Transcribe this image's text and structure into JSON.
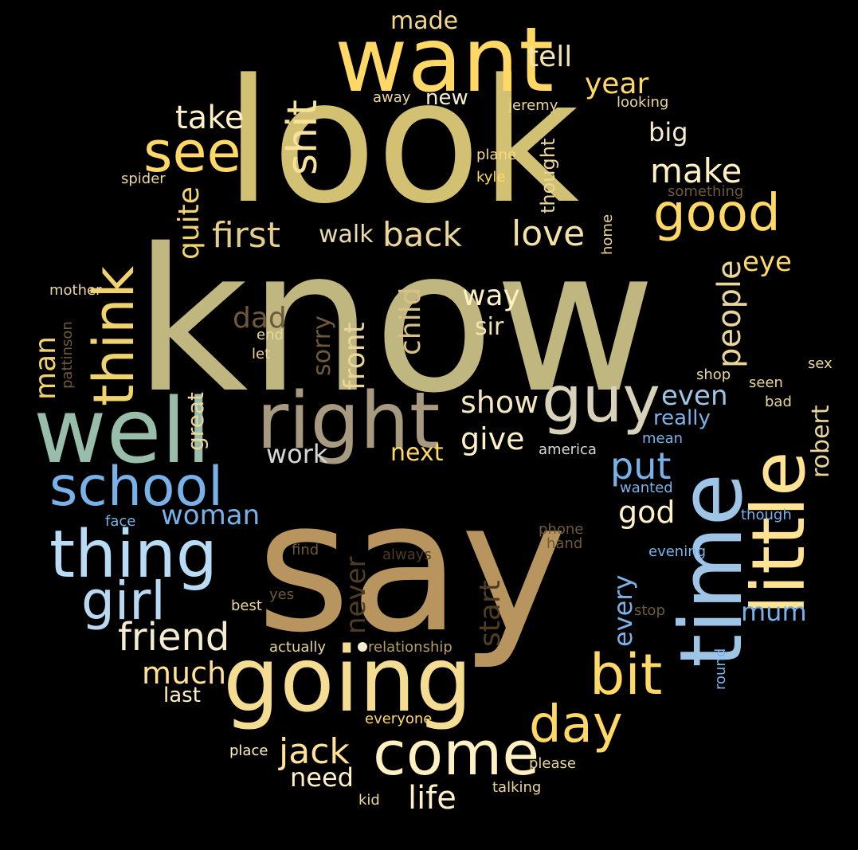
{
  "words": {
    "know": "know",
    "say": "say",
    "look": "look",
    "want": "want",
    "time": "time",
    "little": "little",
    "well": "well",
    "going": "going",
    "right": "right",
    "guy": "guy",
    "think": "think",
    "thing": "thing",
    "school": "school",
    "see": "see",
    "come": "come",
    "girl": "girl",
    "bit": "bit",
    "day": "day",
    "good": "good",
    "shit": "shit",
    "friend": "friend",
    "first": "first",
    "back": "back",
    "love": "love",
    "make": "make",
    "take": "take",
    "tell": "tell",
    "year": "year",
    "made": "made",
    "new": "new",
    "big": "big",
    "quite": "quite",
    "walk": "walk",
    "people": "people",
    "eye": "eye",
    "child": "child",
    "way": "way",
    "sir": "sir",
    "dad": "dad",
    "sorry": "sorry",
    "front": "front",
    "man": "man",
    "great": "great",
    "show": "show",
    "give": "give",
    "even": "even",
    "work": "work",
    "next": "next",
    "put": "put",
    "really": "really",
    "robert": "robert",
    "woman": "woman",
    "god": "god",
    "never": "never",
    "start": "start",
    "every": "every",
    "mum": "mum",
    "much": "much",
    "last": "last",
    "jack": "jack",
    "need": "need",
    "life": "life",
    "thought": "thought",
    "home": "home",
    "something": "something",
    "looking": "looking",
    "jeremy": "jeremy",
    "away": "away",
    "plane": "plane",
    "kyle": "kyle",
    "spider": "spider",
    "mother": "mother",
    "pattinson": "pattinson",
    "end": "end",
    "let": "let",
    "shop": "shop",
    "sex": "sex",
    "seen": "seen",
    "bad": "bad",
    "mean": "mean",
    "america": "america",
    "wanted": "wanted",
    "though": "though",
    "face": "face",
    "phone": "phone",
    "hand": "hand",
    "find": "find",
    "always": "always",
    "evening": "evening",
    "yes": "yes",
    "best": "best",
    "stop": "stop",
    "actually": "actually",
    "relationship": "relationship",
    "round": "round",
    "everyone": "everyone",
    "place": "place",
    "please": "please",
    "kid": "kid",
    "talking": "talking"
  },
  "colors": {
    "background": "#000000",
    "gold": "#ffd866",
    "khaki": "#ccbf85",
    "tan": "#b79c69",
    "sage": "#98bdab",
    "skyblue": "#9ec5e6",
    "blue": "#79b2e8",
    "cream": "#f7e2a6",
    "lightgray": "#d6d6d6",
    "brown": "#6e5a3a",
    "darkbrown": "#4e3d24"
  }
}
